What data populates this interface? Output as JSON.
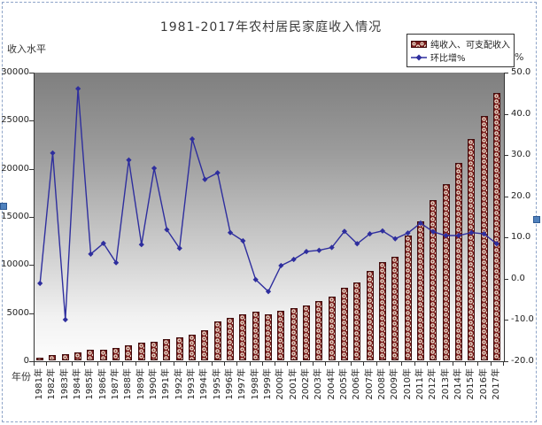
{
  "chart_data": {
    "type": "bar",
    "combo_with_line": true,
    "title": "1981-2017年农村居民家庭收入情况",
    "categories": [
      "1981年",
      "1982年",
      "1983年",
      "1984年",
      "1985年",
      "1986年",
      "1987年",
      "1988年",
      "1989年",
      "1990年",
      "1991年",
      "1992年",
      "1993年",
      "1994年",
      "1995年",
      "1996年",
      "1997年",
      "1998年",
      "1999年",
      "2000年",
      "2001年",
      "2002年",
      "2003年",
      "2004年",
      "2005年",
      "2006年",
      "2007年",
      "2008年",
      "2009年",
      "2010年",
      "2011年",
      "2012年",
      "2013年",
      "2014年",
      "2015年",
      "2016年",
      "2017年"
    ],
    "series": [
      {
        "name": "纯收入、可支配收入",
        "type": "bar",
        "axis": "left",
        "color": "#7a1c1c",
        "pattern": "white-circle-dots",
        "values": [
          380,
          620,
          700,
          920,
          1170,
          1220,
          1390,
          1700,
          1940,
          2030,
          2310,
          2450,
          2720,
          3200,
          4100,
          4470,
          4900,
          5150,
          4850,
          5200,
          5550,
          5800,
          6260,
          6690,
          7670,
          8230,
          9400,
          10330,
          10820,
          13100,
          14580,
          16730,
          18430,
          20590,
          23060,
          25520,
          27920
        ]
      },
      {
        "name": "环比增%",
        "type": "line",
        "axis": "right",
        "color": "#2e2e9e",
        "marker": "diamond",
        "values": [
          -1.1,
          30.5,
          -9.9,
          46.1,
          6.0,
          8.6,
          3.9,
          28.8,
          8.3,
          26.8,
          11.9,
          7.4,
          33.9,
          24.1,
          25.7,
          11.2,
          9.2,
          -0.2,
          -3.1,
          3.2,
          4.7,
          6.6,
          6.9,
          7.6,
          11.5,
          8.5,
          10.9,
          11.6,
          9.7,
          11.1,
          13.5,
          11.4,
          10.5,
          10.5,
          11.2,
          10.9,
          8.5
        ]
      }
    ],
    "left_axis": {
      "label": "收入水平",
      "min": 0,
      "max": 30000,
      "ticks": [
        "0",
        "5000",
        "10000",
        "15000",
        "20000",
        "25000",
        "30000"
      ]
    },
    "right_axis": {
      "label": "%",
      "min": -20,
      "max": 50,
      "ticks": [
        "-20.0",
        "-10.0",
        "0.0",
        "10.0",
        "20.0",
        "30.0",
        "40.0",
        "50.0"
      ]
    },
    "x_axis": {
      "label": "年份"
    },
    "legend_position": "top-right",
    "grid": false,
    "plot_background": {
      "type": "gradient",
      "top": "#7f7f7f",
      "bottom": "#ffffff"
    }
  },
  "decorations": {
    "page_break_border_color": "#8ea4c8",
    "selection_handle_color": "#4f81bd"
  }
}
